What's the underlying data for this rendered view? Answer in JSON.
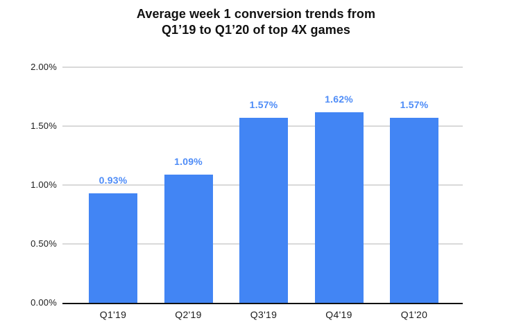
{
  "title_lines": [
    "Average week 1 conversion trends from",
    "Q1’19 to Q1’20 of top 4X games"
  ],
  "colors": {
    "bar": "#4285f4",
    "data_label": "#4e8cf7",
    "gridline": "#d9d9d9",
    "axis_line": "#111111",
    "text": "#1c1c1c"
  },
  "chart_data": {
    "type": "bar",
    "title": "Average week 1 conversion trends from Q1’19 to Q1’20 of top 4X games",
    "categories": [
      "Q1'19",
      "Q2'19",
      "Q3'19",
      "Q4'19",
      "Q1'20"
    ],
    "values": [
      0.93,
      1.09,
      1.57,
      1.62,
      1.57
    ],
    "data_labels": [
      "0.93%",
      "1.09%",
      "1.57%",
      "1.62%",
      "1.57%"
    ],
    "xlabel": "",
    "ylabel": "",
    "ylim": [
      0,
      2.0
    ],
    "ytick_values": [
      2.0,
      1.5,
      1.0,
      0.5,
      0.0
    ],
    "ytick_labels": [
      "2.00%",
      "1.50%",
      "1.00%",
      "0.50%",
      "0.00%"
    ],
    "grid": true,
    "legend": false
  }
}
